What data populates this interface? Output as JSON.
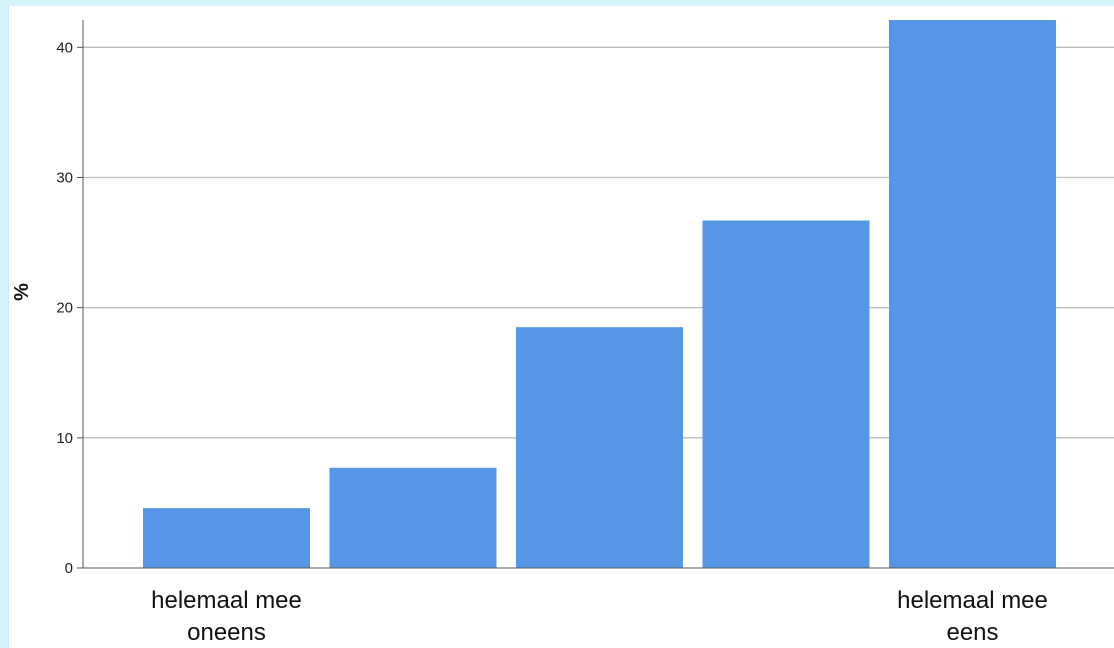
{
  "chart_data": {
    "type": "bar",
    "categories": [
      "helemaal mee oneens",
      "",
      "",
      "",
      "helemaal mee eens"
    ],
    "category_label_lines": [
      [
        "helemaal mee",
        "oneens"
      ],
      [],
      [],
      [],
      [
        "helemaal mee",
        "eens"
      ]
    ],
    "values": [
      4.6,
      7.7,
      18.5,
      26.7,
      42.1
    ],
    "title": "",
    "xlabel": "",
    "ylabel": "%",
    "ylim": [
      0,
      42.1
    ],
    "yticks": [
      0,
      10,
      20,
      30,
      40
    ],
    "grid": true,
    "legend": "none",
    "colors": {
      "bar": "#5596e6",
      "grid": "#bdbdbd",
      "axis": "#555555",
      "background": "#ffffff",
      "outer_background": "#d6f3fb"
    }
  }
}
